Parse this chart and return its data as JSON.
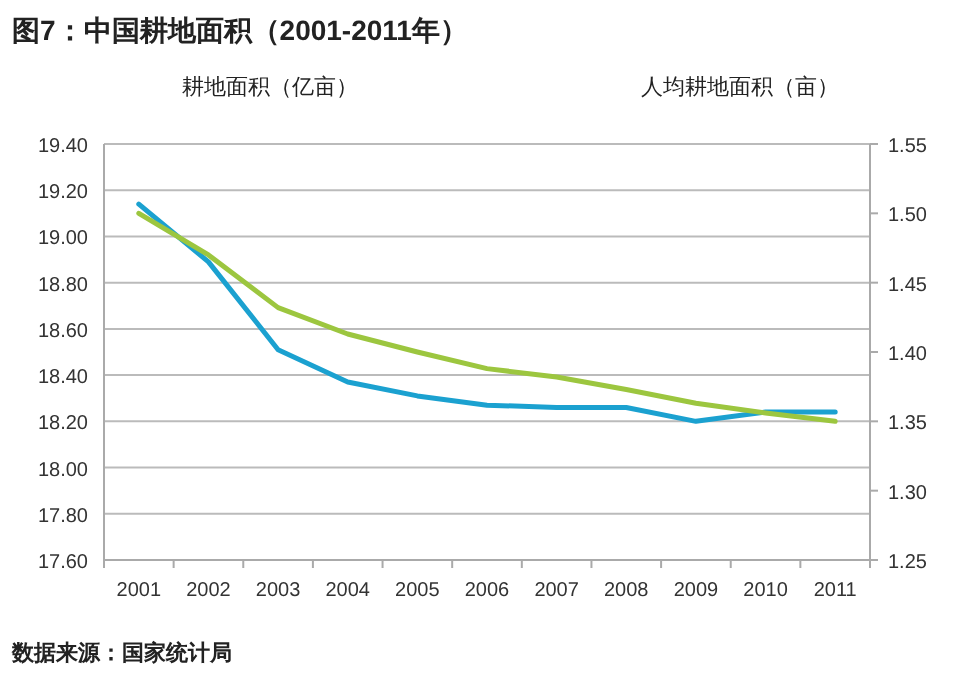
{
  "chart_data": {
    "type": "line",
    "title": "图7：中国耕地面积（2001-2011年）",
    "ylabel": "耕地面积（亿亩）",
    "y2label": "人均耕地面积（亩）",
    "categories": [
      "2001",
      "2002",
      "2003",
      "2004",
      "2005",
      "2006",
      "2007",
      "2008",
      "2009",
      "2010",
      "2011"
    ],
    "series": [
      {
        "color": "#1ba1d0",
        "values": [
          19.14,
          18.89,
          18.51,
          18.37,
          18.31,
          18.27,
          18.26,
          18.26,
          18.2,
          18.24,
          18.24
        ]
      },
      {
        "color": "#9cc63f",
        "axis": "y2",
        "values": [
          1.5,
          1.47,
          1.432,
          1.413,
          1.4,
          1.388,
          1.382,
          1.373,
          1.363,
          1.356,
          1.35
        ]
      }
    ],
    "ylim": [
      17.6,
      19.4
    ],
    "yticks": [
      {
        "value": 17.6,
        "label": "17.60"
      },
      {
        "value": 17.8,
        "label": "17.80"
      },
      {
        "value": 18.0,
        "label": "18.00"
      },
      {
        "value": 18.2,
        "label": "18.20"
      },
      {
        "value": 18.4,
        "label": "18.40"
      },
      {
        "value": 18.6,
        "label": "18.60"
      },
      {
        "value": 18.8,
        "label": "18.80"
      },
      {
        "value": 19.0,
        "label": "19.00"
      },
      {
        "value": 19.2,
        "label": "19.20"
      },
      {
        "value": 19.4,
        "label": "19.40"
      }
    ],
    "y2lim": [
      1.25,
      1.55
    ],
    "y2ticks": [
      1.25,
      {
        "value": 1.3,
        "label": "1.30"
      },
      1.35,
      {
        "value": 1.4,
        "label": "1.40"
      },
      1.45,
      {
        "value": 1.5,
        "label": "1.50"
      },
      1.55
    ],
    "grid": "y",
    "annotations": [
      "数据来源：国家统计局"
    ]
  }
}
